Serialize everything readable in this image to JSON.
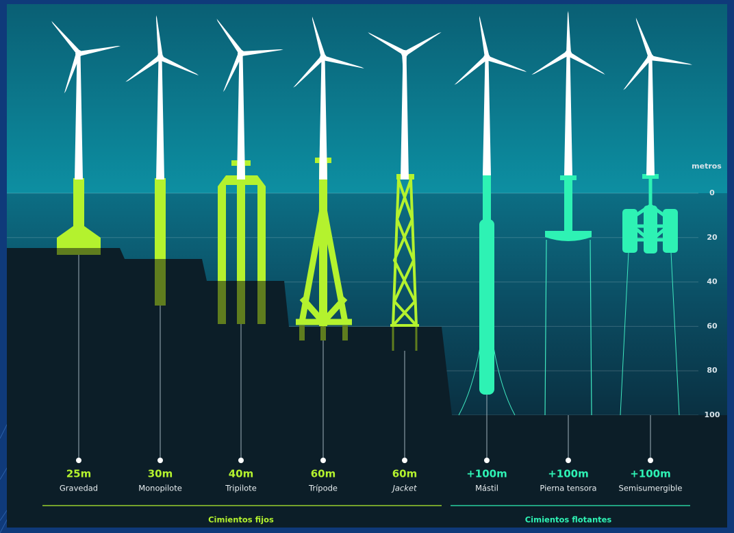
{
  "scale": {
    "label": "metros",
    "ticks": [
      0,
      20,
      40,
      60,
      80,
      100
    ]
  },
  "foundations": [
    {
      "depth": "25m",
      "name": "Gravedad"
    },
    {
      "depth": "30m",
      "name": "Monopilote"
    },
    {
      "depth": "40m",
      "name": "Tripilote"
    },
    {
      "depth": "60m",
      "name": "Trípode"
    },
    {
      "depth": "60m",
      "name": "Jacket"
    },
    {
      "depth": "+100m",
      "name": "Mástil"
    },
    {
      "depth": "+100m",
      "name": "Pierna tensora"
    },
    {
      "depth": "+100m",
      "name": "Semisumergible"
    }
  ],
  "groups": [
    {
      "label": "Cimientos fijos"
    },
    {
      "label": "Cimientos flotantes"
    }
  ]
}
